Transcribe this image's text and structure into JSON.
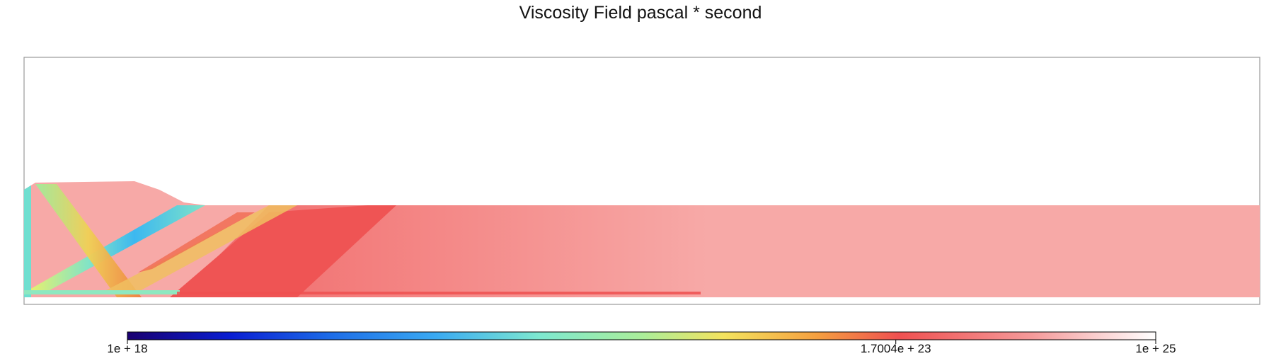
{
  "chart_data": {
    "type": "heatmap",
    "title": "Viscosity Field pascal * second",
    "colorbar": {
      "scale": "log",
      "min": 1e+18,
      "max": 1e+25,
      "ticks": [
        {
          "value": 1e+18,
          "label": "1e + 18"
        },
        {
          "value": 1.7004e+23,
          "label": "1.7004e + 23"
        },
        {
          "value": 1e+25,
          "label": "1e + 25"
        }
      ],
      "colormap": [
        "#1a0070",
        "#0a1ed2",
        "#3aaaf2",
        "#7de8d0",
        "#c8ee86",
        "#f4e35e",
        "#f5a040",
        "#ef5050",
        "#f59a9a",
        "#ffffff"
      ]
    },
    "grid": false
  }
}
